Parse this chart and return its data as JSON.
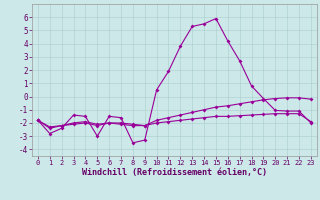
{
  "xlabel": "Windchill (Refroidissement éolien,°C)",
  "bg_color": "#cce8e8",
  "grid_color": "#aacccc",
  "line_color": "#990099",
  "x_ticks": [
    0,
    1,
    2,
    3,
    4,
    5,
    6,
    7,
    8,
    9,
    10,
    11,
    12,
    13,
    14,
    15,
    16,
    17,
    18,
    19,
    20,
    21,
    22,
    23
  ],
  "ylim": [
    -4.5,
    7.0
  ],
  "xlim": [
    -0.5,
    23.5
  ],
  "y_ticks": [
    -4,
    -3,
    -2,
    -1,
    0,
    1,
    2,
    3,
    4,
    5,
    6
  ],
  "series1_x": [
    0,
    1,
    2,
    3,
    4,
    5,
    6,
    7,
    8,
    9,
    10,
    11,
    12,
    13,
    14,
    15,
    16,
    17,
    18,
    19,
    20,
    21,
    22,
    23
  ],
  "series1_y": [
    -1.8,
    -2.8,
    -2.4,
    -1.4,
    -1.5,
    -3.0,
    -1.5,
    -1.6,
    -3.5,
    -3.3,
    0.5,
    1.9,
    3.8,
    5.3,
    5.5,
    5.9,
    4.2,
    2.7,
    0.8,
    -0.15,
    -1.05,
    -1.1,
    -1.1,
    -2.0
  ],
  "series2_x": [
    0,
    1,
    2,
    3,
    4,
    5,
    6,
    7,
    8,
    9,
    10,
    11,
    12,
    13,
    14,
    15,
    16,
    17,
    18,
    19,
    20,
    21,
    22,
    23
  ],
  "series2_y": [
    -1.8,
    -2.4,
    -2.2,
    -2.0,
    -1.9,
    -2.1,
    -2.0,
    -2.0,
    -2.1,
    -2.2,
    -1.8,
    -1.6,
    -1.4,
    -1.2,
    -1.0,
    -0.8,
    -0.7,
    -0.55,
    -0.4,
    -0.25,
    -0.15,
    -0.1,
    -0.1,
    -0.2
  ],
  "series3_x": [
    0,
    1,
    2,
    3,
    4,
    5,
    6,
    7,
    8,
    9,
    10,
    11,
    12,
    13,
    14,
    15,
    16,
    17,
    18,
    19,
    20,
    21,
    22,
    23
  ],
  "series3_y": [
    -1.8,
    -2.3,
    -2.2,
    -2.1,
    -2.0,
    -2.2,
    -2.0,
    -2.1,
    -2.2,
    -2.2,
    -2.0,
    -1.9,
    -1.8,
    -1.7,
    -1.6,
    -1.5,
    -1.5,
    -1.45,
    -1.4,
    -1.35,
    -1.3,
    -1.3,
    -1.3,
    -1.9
  ],
  "tick_fontsize": 5.0,
  "xlabel_fontsize": 6.0,
  "marker_size": 2.0,
  "linewidth": 0.8
}
